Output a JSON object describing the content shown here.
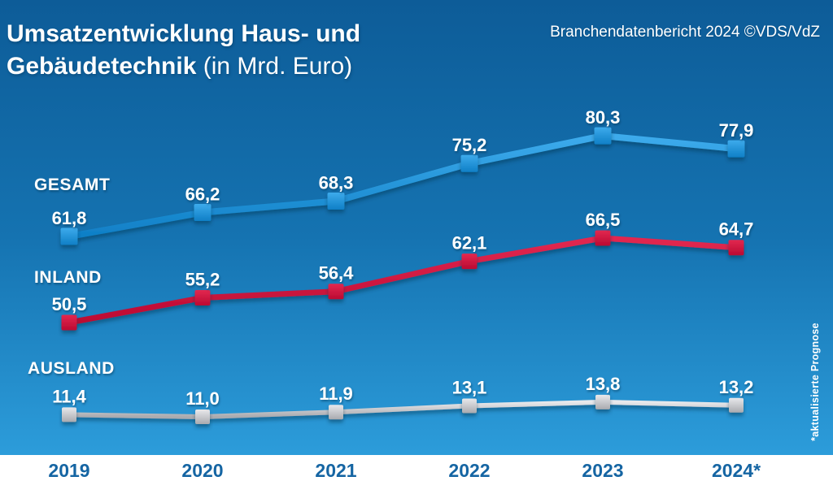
{
  "header": {
    "title_line1": "Umsatzentwicklung Haus- und",
    "title_line2_bold": "Gebäudetechnik",
    "title_line2_light": "(in Mrd. Euro)",
    "credit": "Branchendatenbericht 2024 ©VDS/VdZ"
  },
  "footnote": "*aktualisierte Prognose",
  "colors": {
    "background_top": "#0d5c98",
    "background_bottom": "#2c9cda",
    "footer_band": "#ffffff",
    "axis_label": "#1565a3",
    "value_label": "#ffffff",
    "gesamt_line": "#1e97e0",
    "inland_line": "#d60f3c",
    "ausland_line": "#c6c7cb"
  },
  "chart_data": {
    "type": "line",
    "title": "Umsatzentwicklung Haus- und Gebäudetechnik (in Mrd. Euro)",
    "unit": "Mrd. Euro",
    "categories": [
      "2019",
      "2020",
      "2021",
      "2022",
      "2023",
      "2024*"
    ],
    "series": [
      {
        "name": "GESAMT",
        "values": [
          61.8,
          66.2,
          68.3,
          75.2,
          80.3,
          77.9
        ],
        "color": "#1e97e0"
      },
      {
        "name": "INLAND",
        "values": [
          50.5,
          55.2,
          56.4,
          62.1,
          66.5,
          64.7
        ],
        "color": "#d60f3c"
      },
      {
        "name": "AUSLAND",
        "values": [
          11.4,
          11.0,
          11.9,
          13.1,
          13.8,
          13.2
        ],
        "color": "#c6c7cb"
      }
    ],
    "value_label_format": "german-decimal-comma-1dp",
    "legend_position": "inline-left",
    "grid": false,
    "xlabel": "",
    "ylabel": ""
  }
}
